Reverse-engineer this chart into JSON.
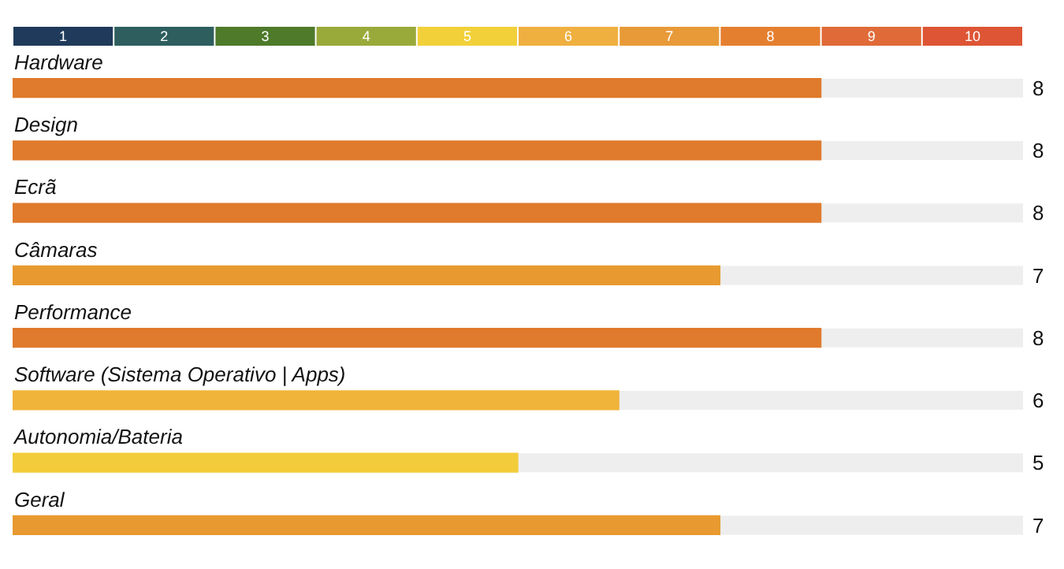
{
  "chart_data": {
    "type": "bar",
    "orientation": "horizontal",
    "categories": [
      "Hardware",
      "Design",
      "Ecrã",
      "Câmaras",
      "Performance",
      "Software (Sistema Operativo | Apps)",
      "Autonomia/Bateria",
      "Geral"
    ],
    "values": [
      8,
      8,
      8,
      7,
      8,
      6,
      5,
      7
    ],
    "colors": [
      "#e07a2c",
      "#e07a2c",
      "#e07a2c",
      "#e89a30",
      "#e07a2c",
      "#f0b43a",
      "#f2cc3a",
      "#e89a30"
    ],
    "xlim": [
      0,
      10
    ],
    "x2lim": [
      0,
      10
    ],
    "x2ticks": [
      {
        "value": 0.5,
        "label": "1"
      },
      {
        "value": 1.5,
        "label": "2"
      },
      {
        "value": 2.5,
        "label": "3"
      },
      {
        "value": 3.5,
        "label": "4"
      },
      {
        "value": 4.5,
        "label": "5"
      },
      {
        "value": 5.5,
        "label": "6"
      },
      {
        "value": 6.5,
        "label": "7"
      },
      {
        "value": 7.5,
        "label": "8"
      },
      {
        "value": 8.5,
        "label": "9"
      },
      {
        "value": 9.5,
        "label": "10"
      }
    ],
    "data_labels": true
  }
}
